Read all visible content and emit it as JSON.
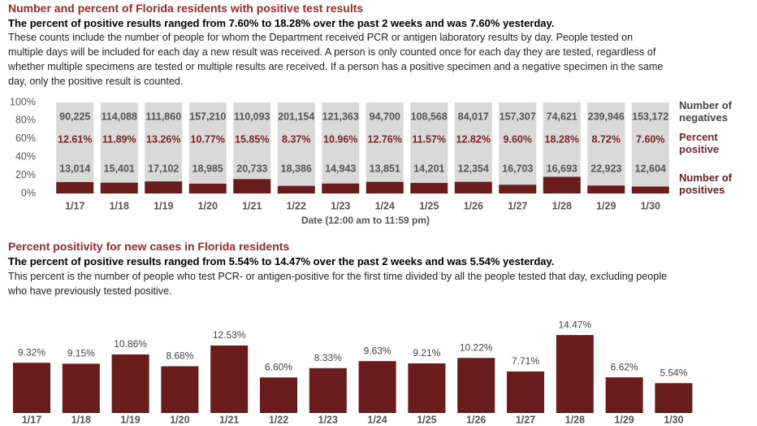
{
  "charts": [
    {
      "type": "stacked_percent_bar",
      "title": "Number and percent of Florida residents with positive test results",
      "subtitle": "The percent of positive results ranged from 7.60% to 18.28% over the past 2 weeks and was 7.60% yesterday.",
      "description": "These counts include the number of people for whom the Department received PCR or antigen laboratory results by day. People tested on multiple days will be included for each day a new result was received. A person is only counted once for each day they are tested, regardless of whether multiple specimens are tested or multiple results are received. If a person has a positive specimen and a negative specimen in the same day, only the positive result is counted.",
      "x_label": "Date (12:00 am to 11:59 pm)",
      "categories": [
        "1/17",
        "1/18",
        "1/19",
        "1/20",
        "1/21",
        "1/22",
        "1/23",
        "1/24",
        "1/25",
        "1/26",
        "1/27",
        "1/28",
        "1/29",
        "1/30"
      ],
      "negatives": {
        "name": "Number of negatives",
        "color": "#d9d9d9",
        "values": [
          90225,
          114088,
          111860,
          157210,
          110093,
          201154,
          121363,
          94700,
          108568,
          84017,
          157307,
          74621,
          239946,
          153172
        ],
        "value_labels": [
          "90,225",
          "114,088",
          "111,860",
          "157,210",
          "110,093",
          "201,154",
          "121,363",
          "94,700",
          "108,568",
          "84,017",
          "157,307",
          "74,621",
          "239,946",
          "153,172"
        ]
      },
      "percent": {
        "name": "Percent positive",
        "color": "#7a2525",
        "values": [
          12.61,
          11.89,
          13.26,
          10.77,
          15.85,
          8.37,
          10.96,
          12.76,
          11.57,
          12.82,
          9.6,
          18.28,
          8.72,
          7.6
        ],
        "value_labels": [
          "12.61%",
          "11.89%",
          "13.26%",
          "10.77%",
          "15.85%",
          "8.37%",
          "10.96%",
          "12.76%",
          "11.57%",
          "12.82%",
          "9.60%",
          "18.28%",
          "8.72%",
          "7.60%"
        ]
      },
      "positives": {
        "name": "Number of positives",
        "color": "#6a1c1c",
        "values": [
          13014,
          15401,
          17102,
          18985,
          20733,
          18386,
          14943,
          13851,
          14201,
          12354,
          16703,
          16693,
          22923,
          12604
        ],
        "value_labels": [
          "13,014",
          "15,401",
          "17,102",
          "18,985",
          "20,733",
          "18,386",
          "14,943",
          "13,851",
          "14,201",
          "12,354",
          "16,703",
          "16,693",
          "22,923",
          "12,604"
        ]
      },
      "ylim": [
        0,
        100
      ],
      "yticks": [
        {
          "value": 0,
          "label": "0%"
        },
        {
          "value": 20,
          "label": "20%"
        },
        {
          "value": 40,
          "label": "40%"
        },
        {
          "value": 60,
          "label": "60%"
        },
        {
          "value": 80,
          "label": "80%"
        },
        {
          "value": 100,
          "label": "100%"
        }
      ]
    },
    {
      "type": "bar",
      "title": "Percent positivity for new cases in Florida residents",
      "subtitle": "The percent of positive results ranged from 5.54% to 14.47% over the past 2 weeks and was 5.54% yesterday.",
      "description": "This percent is the number of people who test PCR- or antigen-positive for the first time divided by all the people tested that day, excluding people who have previously tested positive.",
      "categories": [
        "1/17",
        "1/18",
        "1/19",
        "1/20",
        "1/21",
        "1/22",
        "1/23",
        "1/24",
        "1/25",
        "1/26",
        "1/27",
        "1/28",
        "1/29",
        "1/30"
      ],
      "values": [
        9.32,
        9.15,
        10.86,
        8.68,
        12.53,
        6.6,
        8.33,
        9.63,
        9.21,
        10.22,
        7.71,
        14.47,
        6.62,
        5.54
      ],
      "value_labels": [
        "9.32%",
        "9.15%",
        "10.86%",
        "8.68%",
        "12.53%",
        "6.60%",
        "8.33%",
        "9.63%",
        "9.21%",
        "10.22%",
        "7.71%",
        "14.47%",
        "6.62%",
        "5.54%"
      ],
      "color": "#6a1c1c",
      "ylim": [
        0,
        16
      ]
    }
  ]
}
